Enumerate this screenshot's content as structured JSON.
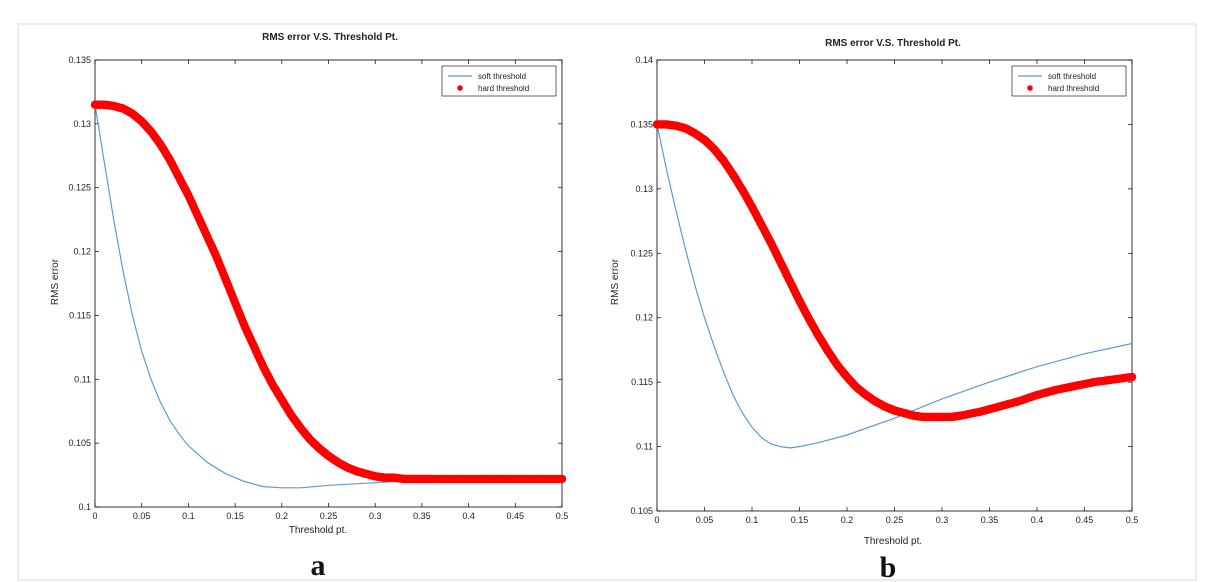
{
  "chart_data": [
    {
      "panel": "a",
      "type": "line",
      "title": "RMS error V.S. Threshold Pt.",
      "xlabel": "Threshold pt.",
      "ylabel": "RMS error",
      "xlim": [
        0,
        0.5
      ],
      "ylim": [
        0.1,
        0.135
      ],
      "xticks": [
        "0",
        "0.05",
        "0.1",
        "0.15",
        "0.2",
        "0.25",
        "0.3",
        "0.35",
        "0.4",
        "0.45",
        "0.5"
      ],
      "yticks": [
        "0.1",
        "0.105",
        "0.11",
        "0.115",
        "0.12",
        "0.125",
        "0.13",
        "0.135"
      ],
      "legend_position": "top-right",
      "series": [
        {
          "name": "soft threshold",
          "style": "line",
          "color": "#5b9bd5",
          "x": [
            0,
            0.01,
            0.02,
            0.03,
            0.04,
            0.05,
            0.06,
            0.07,
            0.08,
            0.09,
            0.1,
            0.12,
            0.14,
            0.16,
            0.18,
            0.2,
            0.22,
            0.25,
            0.3,
            0.35,
            0.4,
            0.45,
            0.5
          ],
          "y": [
            0.1315,
            0.127,
            0.1225,
            0.1185,
            0.115,
            0.1122,
            0.11,
            0.1082,
            0.1068,
            0.1057,
            0.1048,
            0.1035,
            0.1026,
            0.102,
            0.1016,
            0.1015,
            0.1015,
            0.1017,
            0.1019,
            0.1021,
            0.1022,
            0.1022,
            0.1022
          ]
        },
        {
          "name": "hard threshold",
          "style": "markers",
          "color": "#ff0000",
          "x": [
            0,
            0.01,
            0.02,
            0.03,
            0.04,
            0.05,
            0.06,
            0.07,
            0.08,
            0.09,
            0.1,
            0.11,
            0.12,
            0.13,
            0.14,
            0.15,
            0.16,
            0.17,
            0.18,
            0.19,
            0.2,
            0.21,
            0.22,
            0.23,
            0.24,
            0.25,
            0.26,
            0.27,
            0.28,
            0.29,
            0.3,
            0.31,
            0.32,
            0.33,
            0.34,
            0.35,
            0.36,
            0.38,
            0.4,
            0.42,
            0.44,
            0.46,
            0.48,
            0.5
          ],
          "y": [
            0.1315,
            0.1315,
            0.1314,
            0.1312,
            0.1308,
            0.1302,
            0.1294,
            0.1284,
            0.1272,
            0.1258,
            0.1244,
            0.1228,
            0.1212,
            0.1196,
            0.1178,
            0.116,
            0.1142,
            0.1126,
            0.111,
            0.1096,
            0.1084,
            0.1072,
            0.1062,
            0.1053,
            0.1046,
            0.104,
            0.1035,
            0.1031,
            0.1028,
            0.1026,
            0.1024,
            0.1023,
            0.1023,
            0.1022,
            0.1022,
            0.1022,
            0.1022,
            0.1022,
            0.1022,
            0.1022,
            0.1022,
            0.1022,
            0.1022,
            0.1022
          ]
        }
      ]
    },
    {
      "panel": "b",
      "type": "line",
      "title": "RMS error V.S. Threshold Pt.",
      "xlabel": "Threshold pt.",
      "ylabel": "RMS error",
      "xlim": [
        0,
        0.5
      ],
      "ylim": [
        0.105,
        0.14
      ],
      "xticks": [
        "0",
        "0.05",
        "0.1",
        "0.15",
        "0.2",
        "0.25",
        "0.3",
        "0.35",
        "0.4",
        "0.45",
        "0.5"
      ],
      "yticks": [
        "0.105",
        "0.11",
        "0.115",
        "0.12",
        "0.125",
        "0.13",
        "0.135",
        "0.14"
      ],
      "legend_position": "top-right",
      "series": [
        {
          "name": "soft threshold",
          "style": "line",
          "color": "#5b9bd5",
          "x": [
            0,
            0.01,
            0.02,
            0.03,
            0.04,
            0.05,
            0.06,
            0.07,
            0.08,
            0.09,
            0.1,
            0.11,
            0.12,
            0.13,
            0.14,
            0.15,
            0.17,
            0.2,
            0.25,
            0.3,
            0.35,
            0.4,
            0.45,
            0.5
          ],
          "y": [
            0.135,
            0.1315,
            0.1283,
            0.1253,
            0.1225,
            0.12,
            0.1178,
            0.1158,
            0.114,
            0.1126,
            0.1115,
            0.1107,
            0.1102,
            0.11,
            0.1099,
            0.11,
            0.1103,
            0.1109,
            0.1122,
            0.1137,
            0.115,
            0.1162,
            0.1172,
            0.118
          ]
        },
        {
          "name": "hard threshold",
          "style": "markers",
          "color": "#ff0000",
          "x": [
            0,
            0.01,
            0.02,
            0.03,
            0.04,
            0.05,
            0.06,
            0.07,
            0.08,
            0.09,
            0.1,
            0.11,
            0.12,
            0.13,
            0.14,
            0.15,
            0.16,
            0.17,
            0.18,
            0.19,
            0.2,
            0.21,
            0.22,
            0.23,
            0.24,
            0.25,
            0.26,
            0.27,
            0.28,
            0.29,
            0.3,
            0.31,
            0.32,
            0.34,
            0.36,
            0.38,
            0.4,
            0.42,
            0.44,
            0.46,
            0.48,
            0.5
          ],
          "y": [
            0.135,
            0.135,
            0.1349,
            0.1347,
            0.1343,
            0.1338,
            0.1331,
            0.1322,
            0.1311,
            0.1299,
            0.1286,
            0.1272,
            0.1258,
            0.1243,
            0.1228,
            0.1213,
            0.1199,
            0.1186,
            0.1174,
            0.1163,
            0.1154,
            0.1146,
            0.114,
            0.1135,
            0.1131,
            0.1128,
            0.1126,
            0.1124,
            0.1123,
            0.1123,
            0.1123,
            0.1123,
            0.1124,
            0.1127,
            0.1131,
            0.1135,
            0.114,
            0.1144,
            0.1147,
            0.115,
            0.1152,
            0.1154
          ]
        }
      ]
    }
  ],
  "panels": {
    "a": {
      "letter": "a"
    },
    "b": {
      "letter": "b"
    }
  }
}
